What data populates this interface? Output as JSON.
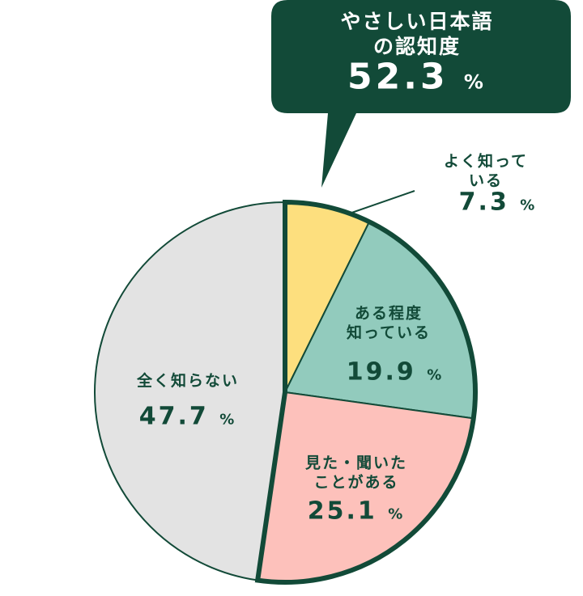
{
  "chart_data": {
    "type": "pie",
    "categories": [
      "よく知っている",
      "ある程度\n知っている",
      "見た・聞いた\nことがある",
      "全く知らない"
    ],
    "values": [
      7.3,
      19.9,
      25.1,
      47.7
    ],
    "colors": [
      "#fddf7e",
      "#92cbbd",
      "#fdc1bb",
      "#e3e3e3"
    ],
    "unit": "%",
    "callout": {
      "title": "やさしい日本語の認知度",
      "value": 52.3
    }
  }
}
